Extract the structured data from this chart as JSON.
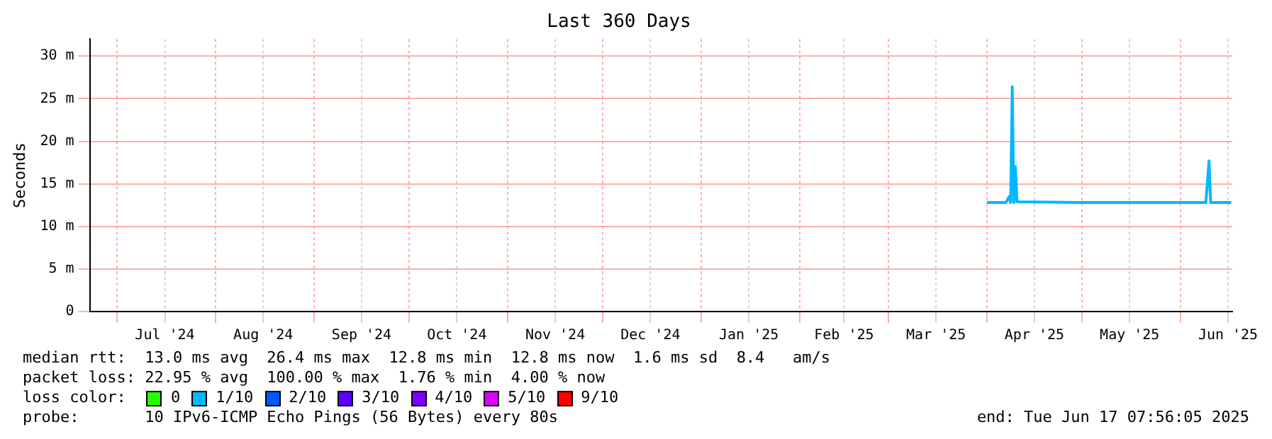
{
  "chart_data": {
    "type": "line",
    "title": "Last 360 Days",
    "ylabel": "Seconds",
    "x": [
      "2025-04-01",
      "2025-04-07",
      "2025-04-08",
      "2025-04-08T12:00",
      "2025-04-09",
      "2025-04-09T12:00",
      "2025-04-10",
      "2025-04-10T12:00",
      "2025-05-01",
      "2025-06-09",
      "2025-06-10",
      "2025-06-10T12:00",
      "2025-06-17"
    ],
    "series": [
      {
        "name": "0",
        "color": "#26ff00",
        "values": [
          null,
          null,
          null,
          null,
          null,
          null,
          null,
          null,
          null,
          null,
          null,
          null,
          null
        ]
      },
      {
        "name": "1/10",
        "color": "#00b8ff",
        "values": [
          12.8,
          12.8,
          13.5,
          12.8,
          26.4,
          12.8,
          17,
          12.9,
          12.8,
          12.8,
          17.7,
          12.8,
          12.8
        ]
      },
      {
        "name": "2/10",
        "color": "#0059ff",
        "values": [
          null,
          null,
          null,
          null,
          null,
          null,
          null,
          null,
          null,
          null,
          null,
          null,
          null
        ]
      },
      {
        "name": "3/10",
        "color": "#5e00ff",
        "values": [
          null,
          null,
          null,
          null,
          null,
          null,
          null,
          null,
          null,
          null,
          null,
          null,
          null
        ]
      },
      {
        "name": "4/10",
        "color": "#7e00ff",
        "values": [
          null,
          null,
          null,
          null,
          null,
          null,
          null,
          null,
          null,
          null,
          null,
          null,
          null
        ]
      },
      {
        "name": "5/10",
        "color": "#dd00ff",
        "values": [
          null,
          null,
          null,
          null,
          null,
          null,
          null,
          null,
          null,
          null,
          null,
          null,
          null
        ]
      },
      {
        "name": "9/10",
        "color": "#ff0000",
        "values": [
          null,
          null,
          null,
          null,
          null,
          null,
          null,
          null,
          null,
          null,
          null,
          null,
          null
        ]
      }
    ],
    "legend_title": "loss color:",
    "legend": "bottom",
    "grid": true,
    "marker": "none",
    "line_style": "solid",
    "xlim": [
      "2024-06-22T08:00",
      "2025-06-17T08:00"
    ],
    "xticks": [
      {
        "value": "2024-07-01",
        "label": null
      },
      {
        "value": "2024-07-16",
        "label": "Jul '24"
      },
      {
        "value": "2024-08-01",
        "label": null
      },
      {
        "value": "2024-08-16",
        "label": "Aug '24"
      },
      {
        "value": "2024-09-01",
        "label": null
      },
      {
        "value": "2024-09-16",
        "label": "Sep '24"
      },
      {
        "value": "2024-10-01",
        "label": null
      },
      {
        "value": "2024-10-16",
        "label": "Oct '24"
      },
      {
        "value": "2024-11-01",
        "label": null
      },
      {
        "value": "2024-11-16",
        "label": "Nov '24"
      },
      {
        "value": "2024-12-01",
        "label": null
      },
      {
        "value": "2024-12-16",
        "label": "Dec '24"
      },
      {
        "value": "2025-01-01",
        "label": null
      },
      {
        "value": "2025-01-16",
        "label": "Jan '25"
      },
      {
        "value": "2025-02-01",
        "label": null
      },
      {
        "value": "2025-02-15",
        "label": "Feb '25"
      },
      {
        "value": "2025-03-01",
        "label": null
      },
      {
        "value": "2025-03-16",
        "label": "Mar '25"
      },
      {
        "value": "2025-04-01",
        "label": null
      },
      {
        "value": "2025-04-16",
        "label": "Apr '25"
      },
      {
        "value": "2025-05-01",
        "label": null
      },
      {
        "value": "2025-05-16",
        "label": "May '25"
      },
      {
        "value": "2025-06-01",
        "label": null
      },
      {
        "value": "2025-06-16",
        "label": "Jun '25"
      }
    ],
    "ylim": [
      0,
      32
    ],
    "yticks": [
      0,
      {
        "value": 5,
        "label": "5 m"
      },
      {
        "value": 10,
        "label": "10 m"
      },
      {
        "value": 15,
        "label": "15 m"
      },
      {
        "value": 20,
        "label": "20 m"
      },
      {
        "value": 25,
        "label": "25 m"
      },
      {
        "value": 30,
        "label": "30 m"
      }
    ],
    "annotations": [
      "median rtt:  13.0 ms avg  26.4 ms max  12.8 ms min  12.8 ms now  1.6 ms sd  8.4   am/s",
      "packet loss: 22.95 % avg  100.00 % max  1.76 % min  4.00 % now",
      "probe:       10 IPv6-ICMP Echo Pings (56 Bytes) every 80s",
      "end: Tue Jun 17 07:56:05 2025"
    ]
  }
}
